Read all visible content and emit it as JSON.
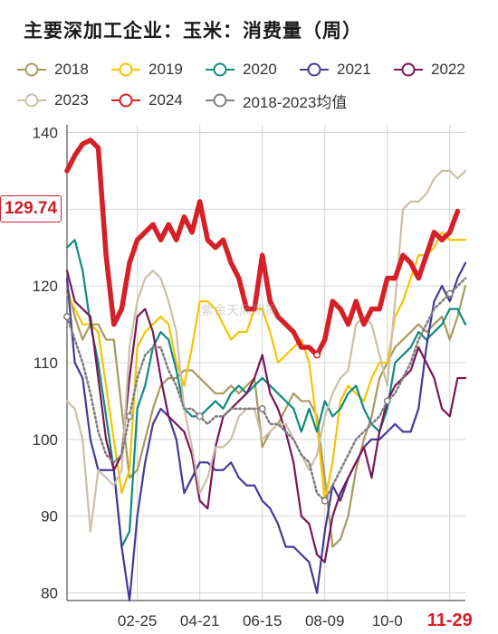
{
  "title": "主要深加工企业：玉米：消费量（周）",
  "last_value_label": "129.74",
  "watermark": "紫金天风期货",
  "colors": {
    "2018": "#a89a5e",
    "2019": "#f5c400",
    "2020": "#0f8a80",
    "2021": "#45399a",
    "2022": "#7a1557",
    "2023": "#cbbfa8",
    "2024": "#d62027",
    "avg": "#7f7f7f"
  },
  "chart_data": {
    "type": "line",
    "ylim": [
      79,
      141
    ],
    "yticks": [
      80,
      90,
      100,
      110,
      120,
      130,
      140
    ],
    "x_tick_labels": [
      "02-25",
      "04-21",
      "06-15",
      "08-09",
      "10-0",
      "11-29"
    ],
    "x_tick_weeks": [
      9,
      17,
      25,
      33,
      41,
      49
    ],
    "series": [
      {
        "name": "2018",
        "color_key": "2018",
        "width": 2.2,
        "dash": false,
        "values": [
          120,
          116,
          113,
          115,
          115,
          113,
          113,
          104,
          95,
          96,
          100,
          104,
          107,
          108,
          108,
          109,
          109,
          108,
          107,
          106,
          106,
          107,
          106,
          107,
          108,
          99,
          101,
          102,
          104,
          106,
          105,
          105,
          103,
          95,
          86,
          87,
          90,
          96,
          100,
          103,
          108,
          110,
          112,
          113,
          114,
          115,
          114,
          115,
          116,
          113,
          116,
          120
        ]
      },
      {
        "name": "2019",
        "color_key": "2019",
        "width": 2.2,
        "dash": false,
        "values": [
          119,
          117,
          115,
          115,
          114,
          107,
          100,
          93,
          96,
          112,
          114,
          115,
          116,
          115,
          110,
          107,
          112,
          118,
          118,
          117,
          115,
          113,
          114,
          114,
          117,
          117,
          114,
          110,
          111,
          112,
          113,
          110,
          102,
          92,
          97,
          105,
          107,
          106,
          105,
          108,
          110,
          110,
          116,
          118,
          121,
          124,
          124,
          125,
          127,
          126,
          126,
          126
        ]
      },
      {
        "name": "2020",
        "color_key": "2020",
        "width": 2.2,
        "dash": false,
        "values": [
          125,
          126,
          122,
          115,
          110,
          103,
          96,
          86,
          88,
          104,
          107,
          112,
          114,
          113,
          109,
          104,
          103,
          103,
          104,
          105,
          104,
          106,
          107,
          106,
          107,
          108,
          107,
          106,
          105,
          104,
          101,
          104,
          101,
          105,
          103,
          104,
          106,
          107,
          104,
          102,
          101,
          104,
          110,
          111,
          112,
          114,
          113,
          114,
          115,
          117,
          117,
          115
        ]
      },
      {
        "name": "2021",
        "color_key": "2021",
        "width": 2.2,
        "dash": false,
        "values": [
          121,
          110,
          108,
          100,
          96,
          96,
          96,
          86,
          79,
          90,
          97,
          102,
          104,
          103,
          100,
          93,
          95,
          97,
          97,
          96,
          96,
          97,
          95,
          94,
          94,
          92,
          91,
          89,
          86,
          86,
          85,
          84,
          80,
          88,
          94,
          92,
          95,
          97,
          99,
          100,
          100,
          101,
          102,
          101,
          101,
          104,
          112,
          118,
          120,
          118,
          121,
          123
        ]
      },
      {
        "name": "2022",
        "color_key": "2022",
        "width": 2.2,
        "dash": false,
        "values": [
          122,
          118,
          117,
          116,
          108,
          100,
          96,
          98,
          108,
          116,
          117,
          114,
          108,
          103,
          102,
          101,
          98,
          92,
          91,
          99,
          103,
          104,
          105,
          106,
          108,
          111,
          106,
          104,
          101,
          97,
          90,
          89,
          85,
          84,
          90,
          93,
          95,
          97,
          99,
          95,
          101,
          105,
          107,
          108,
          109,
          112,
          110,
          108,
          104,
          103,
          108,
          108
        ]
      },
      {
        "name": "2023",
        "color_key": "2023",
        "width": 2.2,
        "dash": false,
        "values": [
          105,
          104,
          100,
          88,
          96,
          95,
          94,
          96,
          112,
          118,
          121,
          122,
          121,
          118,
          114,
          104,
          99,
          93,
          95,
          99,
          99,
          100,
          103,
          104,
          104,
          100,
          101,
          102,
          102,
          100,
          98,
          96,
          98,
          103,
          106,
          108,
          109,
          115,
          116,
          115,
          111,
          107,
          118,
          130,
          131,
          131,
          132,
          134,
          135,
          135,
          134,
          135
        ]
      },
      {
        "name": "2024",
        "color_key": "2024",
        "width": 5.5,
        "dash": false,
        "values": [
          135,
          137,
          138.5,
          139,
          138,
          124,
          115,
          117,
          123,
          126,
          127,
          128,
          126,
          128,
          126,
          129,
          127,
          131,
          126,
          125,
          126,
          123,
          121,
          117,
          117,
          124,
          118,
          116,
          115,
          114,
          112,
          112,
          111,
          113,
          118,
          117,
          115,
          118,
          115,
          117,
          117,
          121,
          121,
          124,
          123,
          121,
          124,
          127,
          126,
          127,
          129.74
        ]
      },
      {
        "name": "2018-2023均值",
        "color_key": "avg",
        "width": 2.6,
        "dash": true,
        "markers": true,
        "values": [
          116,
          113,
          110,
          106,
          101,
          98,
          97,
          98,
          103,
          108,
          111,
          112,
          112,
          109,
          107,
          104,
          104,
          103,
          102,
          103,
          103,
          104,
          104,
          104,
          104,
          104,
          102,
          102,
          101,
          100,
          98,
          97,
          93,
          92,
          94,
          96,
          98,
          100,
          101,
          102,
          103,
          105,
          106,
          108,
          110,
          113,
          115,
          117,
          118,
          119,
          120,
          121
        ]
      }
    ]
  },
  "legend": [
    {
      "label": "2018",
      "color_key": "2018"
    },
    {
      "label": "2019",
      "color_key": "2019"
    },
    {
      "label": "2020",
      "color_key": "2020"
    },
    {
      "label": "2021",
      "color_key": "2021"
    },
    {
      "label": "2022",
      "color_key": "2022"
    },
    {
      "label": "2023",
      "color_key": "2023"
    },
    {
      "label": "2024",
      "color_key": "2024"
    },
    {
      "label": "2018-2023均值",
      "color_key": "avg"
    }
  ]
}
